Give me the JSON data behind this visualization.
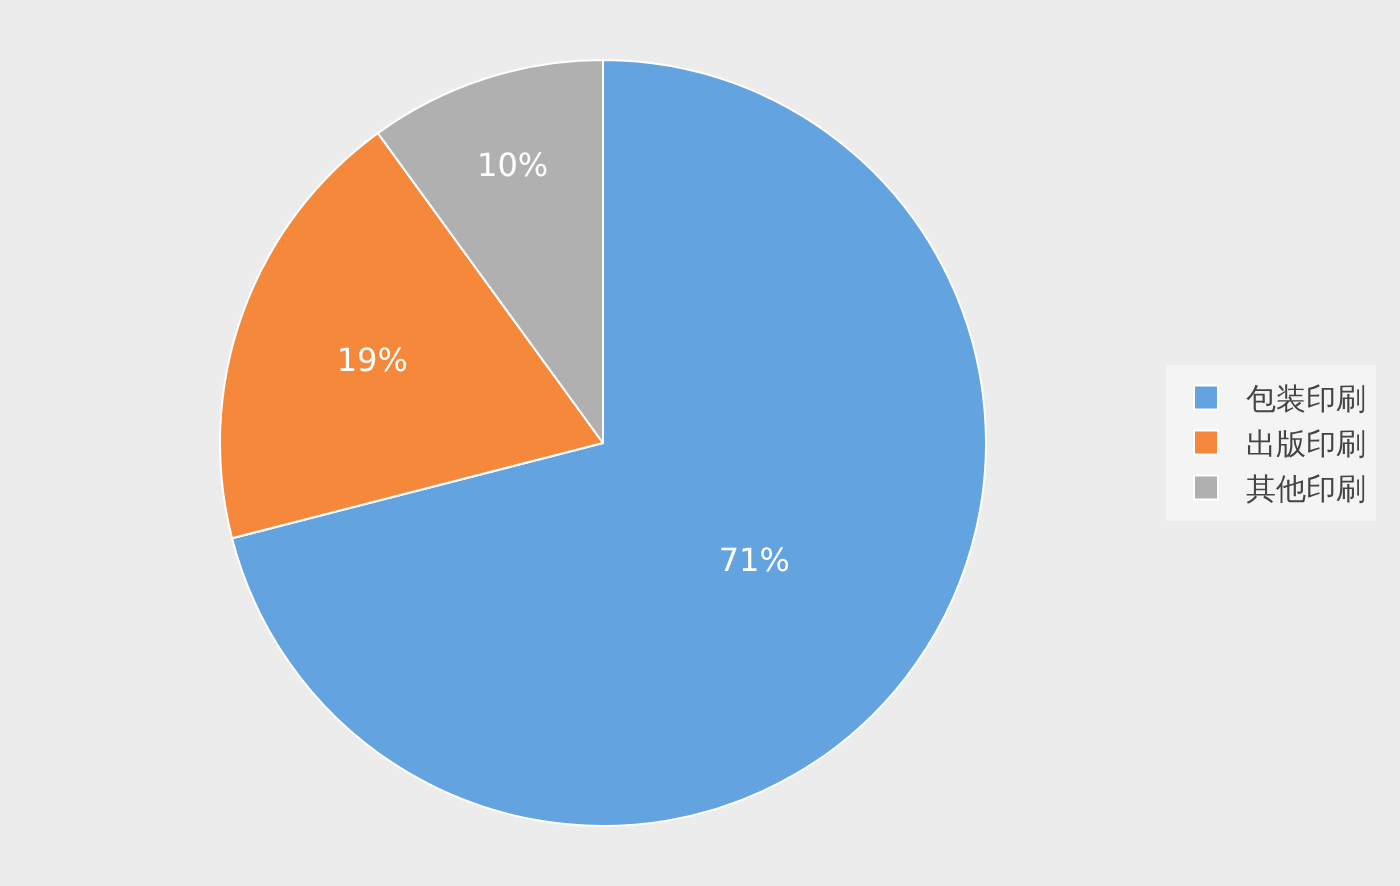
{
  "chart_data": {
    "type": "pie",
    "categories": [
      "包装印刷",
      "出版印刷",
      "其他印刷"
    ],
    "values": [
      71,
      19,
      10
    ],
    "colors": [
      "#62a3e0",
      "#f5883a",
      "#b0b0b0"
    ],
    "value_labels": [
      "71%",
      "19%",
      "10%"
    ],
    "legend": "right"
  }
}
